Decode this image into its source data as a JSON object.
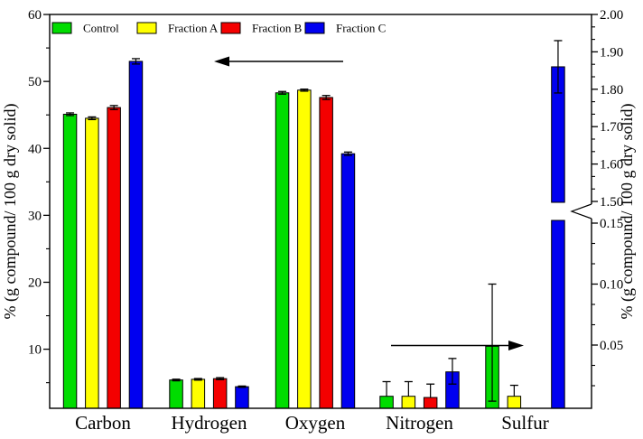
{
  "figure": {
    "background": "#ffffff",
    "frame_color": "#000000"
  },
  "legend": {
    "items": [
      {
        "label": "Control",
        "color": "#00dc00"
      },
      {
        "label": "Fraction A",
        "color": "#ffff00"
      },
      {
        "label": "Fraction B",
        "color": "#f40000"
      },
      {
        "label": "Fraction C",
        "color": "#0000f0"
      }
    ]
  },
  "left_axis": {
    "title": "% (g compound/ 100 g dry solid)",
    "tick_labels": [
      "60",
      "50",
      "40",
      "30",
      "20",
      "10"
    ],
    "tick_values": [
      60,
      50,
      40,
      30,
      20,
      10
    ],
    "range": [
      0,
      60
    ]
  },
  "right_axis": {
    "title": "% (g compound/ 100 g dry solid)",
    "has_break": true,
    "upper_tick_labels": [
      "2.00",
      "1.90",
      "1.80",
      "1.70",
      "1.60",
      "1.50"
    ],
    "upper_tick_values": [
      2.0,
      1.9,
      1.8,
      1.7,
      1.6,
      1.5
    ],
    "upper_range": [
      1.5,
      2.0
    ],
    "lower_tick_labels": [
      "0.15",
      "0.10",
      "0.05"
    ],
    "lower_tick_values": [
      0.15,
      0.1,
      0.05
    ],
    "lower_range": [
      0,
      0.15
    ]
  },
  "annotations": {
    "arrows": [
      {
        "direction": "left",
        "refers_to": "left axis"
      },
      {
        "direction": "right",
        "refers_to": "right axis"
      }
    ]
  },
  "chart_data": {
    "type": "bar",
    "categories": [
      "Carbon",
      "Hydrogen",
      "Oxygen",
      "Nitrogen",
      "Sulfur"
    ],
    "category_axis": [
      "left",
      "left",
      "left",
      "right",
      "right"
    ],
    "series": [
      {
        "name": "Control",
        "color": "#00dc00",
        "values": [
          45.1,
          5.4,
          48.3,
          0.008,
          0.049
        ],
        "err_plus": [
          0.2,
          0.12,
          0.2,
          0.012,
          0.051
        ],
        "err_minus": [
          0.2,
          0.12,
          0.2,
          0,
          0.045
        ]
      },
      {
        "name": "Fraction A",
        "color": "#ffff00",
        "values": [
          44.5,
          5.5,
          48.7,
          0.008,
          0.008
        ],
        "err_plus": [
          0.2,
          0.12,
          0.15,
          0.012,
          0.009
        ],
        "err_minus": [
          0.2,
          0.12,
          0.15,
          0,
          0
        ]
      },
      {
        "name": "Fraction B",
        "color": "#f40000",
        "values": [
          46.1,
          5.6,
          47.6,
          0.007,
          null
        ],
        "err_plus": [
          0.3,
          0.15,
          0.3,
          0.011,
          null
        ],
        "err_minus": [
          0.3,
          0.15,
          0.3,
          0,
          null
        ]
      },
      {
        "name": "Fraction C",
        "color": "#0000f0",
        "values": [
          53.0,
          4.4,
          39.2,
          0.028,
          1.86
        ],
        "err_plus": [
          0.4,
          0.1,
          0.25,
          0.011,
          0.07
        ],
        "err_minus": [
          0.4,
          0.1,
          0.25,
          0.01,
          0.07
        ]
      }
    ],
    "title": "",
    "xlabel": "",
    "ylabel_left": "% (g compound/ 100 g dry solid)",
    "ylabel_right": "% (g compound/ 100 g dry solid)",
    "ylim_left": [
      0,
      60
    ],
    "ylim_right_lower": [
      0,
      0.15
    ],
    "ylim_right_upper": [
      1.5,
      2.0
    ],
    "grid": false,
    "legend_position": "top-inside"
  }
}
